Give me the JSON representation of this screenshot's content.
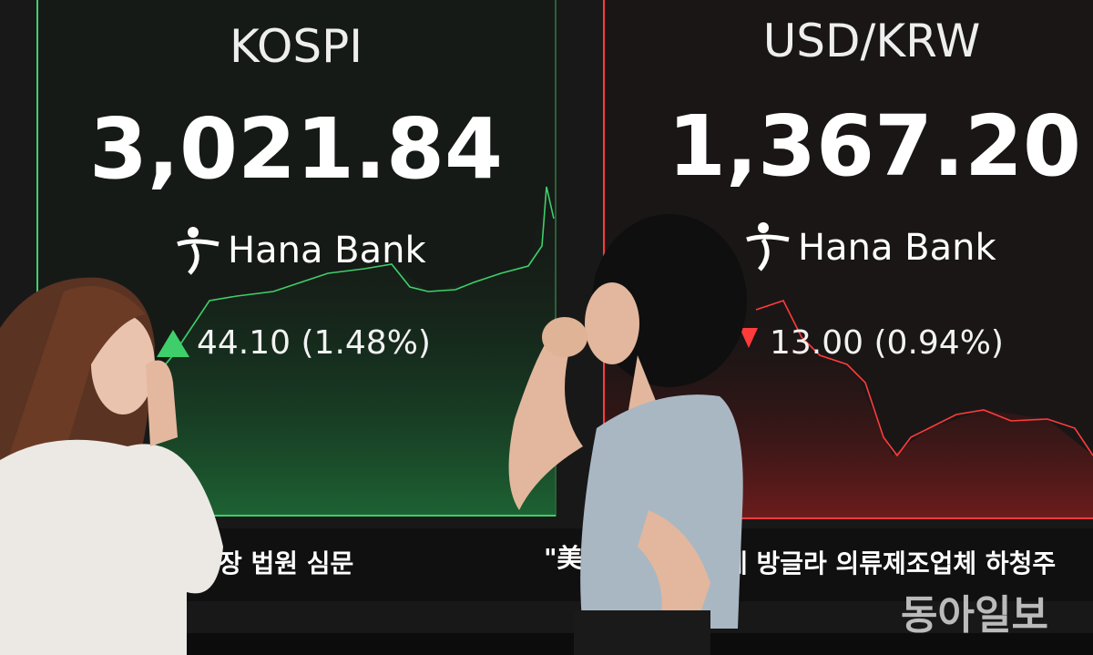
{
  "panels": [
    {
      "title": "KOSPI",
      "value": "3,021.84",
      "brand": "Hana Bank",
      "change": "44.10 (1.48%)"
    },
    {
      "title": "USD/KRW",
      "value": "1,367.20",
      "brand": "Hana Bank",
      "change": "13.00 (0.94%)"
    }
  ],
  "ticker": [
    "장 법원 심문",
    "\"美",
    "에 방글라 의류제조업체 하청주"
  ],
  "watermark": "동아일보"
}
